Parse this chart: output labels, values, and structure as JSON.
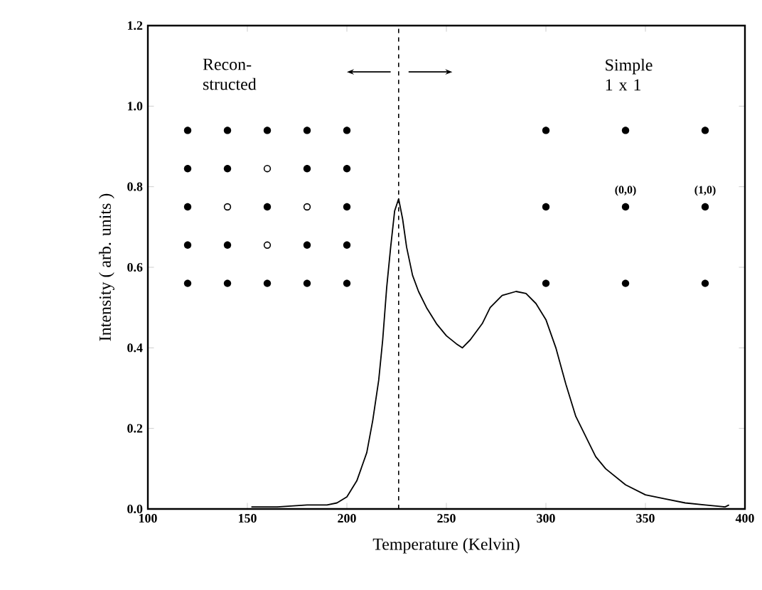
{
  "chart_data": {
    "type": "line",
    "xlabel": "Temperature (Kelvin)",
    "ylabel": "Intensity ( arb. units )",
    "xlim": [
      100,
      400
    ],
    "ylim": [
      0,
      1.2
    ],
    "xticks": [
      {
        "value": 100,
        "label": "100"
      },
      {
        "value": 150,
        "label": "150"
      },
      {
        "value": 200,
        "label": "200"
      },
      {
        "value": 250,
        "label": "250"
      },
      {
        "value": 300,
        "label": "300"
      },
      {
        "value": 350,
        "label": "350"
      },
      {
        "value": 400,
        "label": "400"
      }
    ],
    "yticks": [
      {
        "value": 0,
        "label": "0.0"
      },
      {
        "value": 0.2,
        "label": "0.2"
      },
      {
        "value": 0.4,
        "label": "0.4"
      },
      {
        "value": 0.6,
        "label": "0.6"
      },
      {
        "value": 0.8,
        "label": "0.8"
      },
      {
        "value": 1.0,
        "label": "1.0"
      },
      {
        "value": 1.2,
        "label": "1.2"
      }
    ],
    "x": [
      152,
      165,
      180,
      190,
      195,
      200,
      205,
      210,
      213,
      216,
      218,
      220,
      222,
      224,
      226,
      228,
      230,
      233,
      236,
      240,
      245,
      250,
      255,
      258,
      262,
      268,
      272,
      278,
      285,
      290,
      295,
      300,
      305,
      310,
      315,
      320,
      325,
      330,
      340,
      350,
      360,
      370,
      380,
      390,
      392
    ],
    "values": [
      0.005,
      0.005,
      0.01,
      0.01,
      0.015,
      0.03,
      0.07,
      0.14,
      0.22,
      0.32,
      0.42,
      0.55,
      0.65,
      0.74,
      0.77,
      0.72,
      0.65,
      0.58,
      0.54,
      0.5,
      0.46,
      0.43,
      0.41,
      0.4,
      0.42,
      0.46,
      0.5,
      0.53,
      0.54,
      0.535,
      0.51,
      0.47,
      0.4,
      0.31,
      0.23,
      0.18,
      0.13,
      0.1,
      0.06,
      0.035,
      0.025,
      0.015,
      0.01,
      0.005,
      0.01
    ],
    "color": "#000000",
    "line_style": "solid",
    "marker": "none",
    "grid": false,
    "ref_lines": [
      {
        "axis": "x",
        "value": 226,
        "line_style": "dashed",
        "color": "#000000"
      }
    ],
    "annotations": [
      "Recon- structed",
      "Simple 1 x 1",
      "(0,0)",
      "(1,0)"
    ]
  }
}
